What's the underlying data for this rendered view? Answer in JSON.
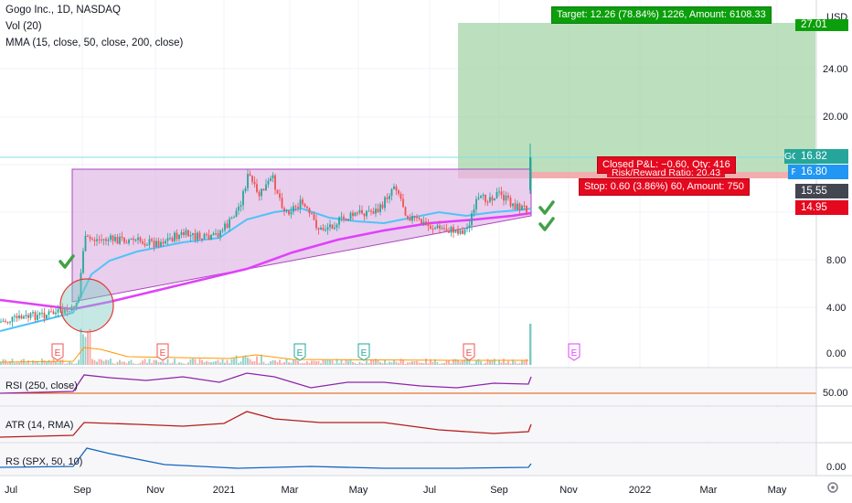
{
  "legend": {
    "symbol": "Gogo Inc., 1D, NASDAQ",
    "volume": "Vol (20)",
    "mma": "MMA (15, close, 50, close, 200, close)"
  },
  "panes": {
    "rsi_label": "RSI (250, close)",
    "atr_label": "ATR (14, RMA)",
    "rs_label": "RS (SPX, 50, 10)"
  },
  "currency": "USD",
  "price_axis": {
    "labels": [
      "27.01",
      "24.00",
      "20.00",
      "8.00",
      "4.00",
      "0.00"
    ],
    "rsi_label": "50.00",
    "rs_label": "0.00"
  },
  "price_tags": {
    "ticker": "GOGO",
    "last": "16.82",
    "post_label": "Post",
    "post": "16.80",
    "mid": "15.55",
    "stop": "14.95"
  },
  "time_axis": [
    "Jul",
    "Sep",
    "Nov",
    "2021",
    "Mar",
    "May",
    "Jul",
    "Sep",
    "Nov",
    "2022",
    "Mar",
    "May"
  ],
  "earnings_markers": [
    "E",
    "E",
    "E",
    "E",
    "E",
    "E"
  ],
  "position": {
    "target": "Target: 12.26 (78.84%) 1226, Amount: 6108.33",
    "closed_pnl": "Closed P&L: −0.60, Qty: 416",
    "risk_reward": "Risk/Reward Ratio: 20.43",
    "stop": "Stop: 0.60 (3.86%) 60, Amount: 750"
  },
  "colors": {
    "up": "#26a69a",
    "down": "#ef5350",
    "ma_fast": "#4fc3f7",
    "ma_slow": "#e040fb",
    "target_zone": "#a5d6a7",
    "stop_zone": "#ef9a9a",
    "triangle_fill": "#e1bee7",
    "check": "#43a047",
    "rsi": "#8e24aa",
    "atr": "#b71c1c",
    "rs": "#1565c0"
  },
  "icons": {
    "check": "check-icon",
    "earnings": "earnings-flag-icon",
    "settings": "settings-icon"
  }
}
